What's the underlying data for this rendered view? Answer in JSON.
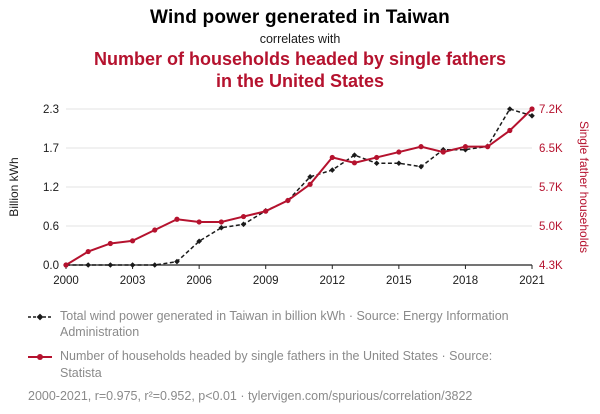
{
  "header": {
    "title": "Wind power generated in Taiwan",
    "connector": "correlates with",
    "subtitle": "Number of households headed by single fathers in the United States"
  },
  "colors": {
    "accent_red": "#b5122e",
    "series_black": "#1a1a1a",
    "text_gray": "#8a8a8a",
    "gridline": "#e3e3e3"
  },
  "chart_data": {
    "type": "line",
    "x": [
      2000,
      2001,
      2002,
      2003,
      2004,
      2005,
      2006,
      2007,
      2008,
      2009,
      2010,
      2011,
      2012,
      2013,
      2014,
      2015,
      2016,
      2017,
      2018,
      2019,
      2020,
      2021
    ],
    "x_ticks": [
      2000,
      2003,
      2006,
      2009,
      2012,
      2015,
      2018,
      2021
    ],
    "series": [
      {
        "name": "Total wind power generated in Taiwan in billion kWh",
        "axis": "left",
        "style": "dashed",
        "marker": "diamond",
        "color": "#1a1a1a",
        "values": [
          0.0,
          0.0,
          0.0,
          0.0,
          0.0,
          0.05,
          0.35,
          0.55,
          0.6,
          0.8,
          0.95,
          1.3,
          1.4,
          1.62,
          1.5,
          1.5,
          1.45,
          1.7,
          1.7,
          1.75,
          2.3,
          2.2
        ]
      },
      {
        "name": "Number of households headed by single fathers in the United States (thousands)",
        "axis": "right",
        "style": "solid",
        "marker": "circle",
        "color": "#b5122e",
        "values": [
          4.3,
          4.55,
          4.7,
          4.75,
          4.95,
          5.15,
          5.1,
          5.1,
          5.2,
          5.3,
          5.5,
          5.8,
          6.3,
          6.2,
          6.3,
          6.4,
          6.5,
          6.4,
          6.5,
          6.5,
          6.8,
          7.2
        ]
      }
    ],
    "left_axis": {
      "label": "Billion kWh",
      "ticks": [
        0.0,
        0.6,
        1.2,
        1.7,
        2.3
      ],
      "range": [
        0,
        2.3
      ],
      "color": "#1a1a1a"
    },
    "right_axis": {
      "label": "Single father households",
      "ticks": [
        "4.3K",
        "5.0K",
        "5.7K",
        "6.5K",
        "7.2K"
      ],
      "range": [
        4.3,
        7.2
      ],
      "color": "#b5122e"
    },
    "grid": true,
    "legend_position": "bottom"
  },
  "legend": [
    {
      "label": "Total wind power generated in Taiwan in billion kWh · Source: Energy Information Administration"
    },
    {
      "label": "Number of households headed by single fathers in the United States · Source: Statista"
    }
  ],
  "footer": "2000-2021, r=0.975, r²=0.952, p<0.01 · tylervigen.com/spurious/correlation/3822"
}
